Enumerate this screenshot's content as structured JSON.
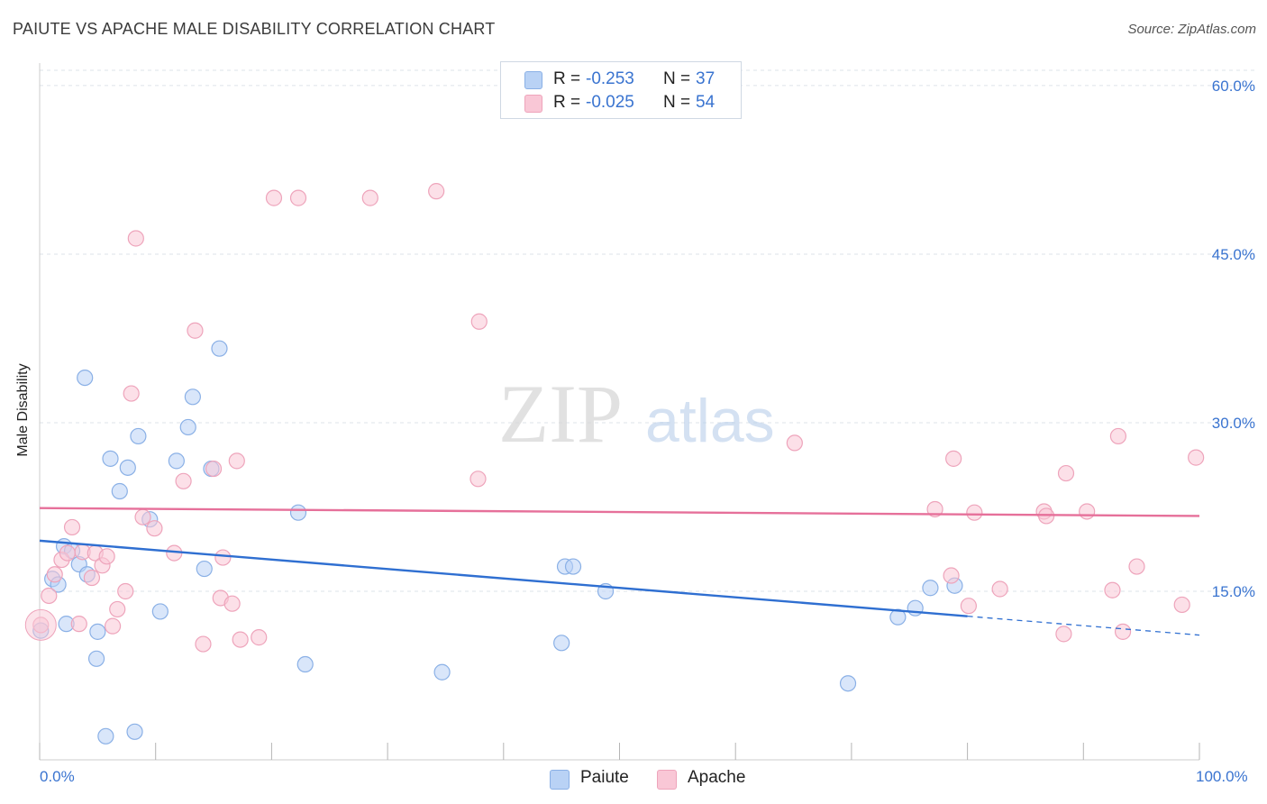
{
  "header": {
    "title": "PAIUTE VS APACHE MALE DISABILITY CORRELATION CHART",
    "source": "Source: ZipAtlas.com"
  },
  "legend_top": {
    "r_label": "R =",
    "n_label": "N =",
    "rows": [
      {
        "r": "-0.253",
        "n": "37"
      },
      {
        "r": "-0.025",
        "n": "54"
      }
    ]
  },
  "watermark": {
    "zip": "ZIP",
    "atlas": "atlas"
  },
  "colors": {
    "paiute_fill": "#b9d2f5",
    "paiute_stroke": "#8ab0e6",
    "paiute_line": "#2f6fd1",
    "apache_fill": "#f9c7d6",
    "apache_stroke": "#eea4bb",
    "apache_line": "#e6709a",
    "tick_text": "#3a74d0",
    "grid": "#dde3ea"
  },
  "chart_data": {
    "type": "scatter",
    "title": "PAIUTE VS APACHE MALE DISABILITY CORRELATION CHART",
    "xlabel": "",
    "ylabel": "Male Disability",
    "xlim": [
      0,
      100
    ],
    "ylim": [
      0,
      62
    ],
    "x_tick_labels": [
      "0.0%",
      "100.0%"
    ],
    "y_ticks": [
      15,
      30,
      45,
      60
    ],
    "y_tick_labels": [
      "15.0%",
      "30.0%",
      "45.0%",
      "60.0%"
    ],
    "grid": true,
    "legend_position": "bottom-center",
    "series": [
      {
        "name": "Paiute",
        "r": -0.253,
        "n": 37,
        "trend": {
          "x0": 0,
          "y0": 19.5,
          "x1": 100,
          "y1": 11.1,
          "solid_until": 80
        },
        "points": [
          [
            0.1,
            11.5
          ],
          [
            1.1,
            16.1
          ],
          [
            1.6,
            15.6
          ],
          [
            2.1,
            19.0
          ],
          [
            2.3,
            12.1
          ],
          [
            2.8,
            18.6
          ],
          [
            3.4,
            17.4
          ],
          [
            3.9,
            34.0
          ],
          [
            4.1,
            16.5
          ],
          [
            4.9,
            9.0
          ],
          [
            5.0,
            11.4
          ],
          [
            5.7,
            2.1
          ],
          [
            6.1,
            26.8
          ],
          [
            6.9,
            23.9
          ],
          [
            7.6,
            26.0
          ],
          [
            8.2,
            2.5
          ],
          [
            8.5,
            28.8
          ],
          [
            9.5,
            21.4
          ],
          [
            10.4,
            13.2
          ],
          [
            11.8,
            26.6
          ],
          [
            12.8,
            29.6
          ],
          [
            13.2,
            32.3
          ],
          [
            14.2,
            17.0
          ],
          [
            14.8,
            25.9
          ],
          [
            15.5,
            36.6
          ],
          [
            22.3,
            22.0
          ],
          [
            22.9,
            8.5
          ],
          [
            34.7,
            7.8
          ],
          [
            45.0,
            10.4
          ],
          [
            45.3,
            17.2
          ],
          [
            46.0,
            17.2
          ],
          [
            48.8,
            15.0
          ],
          [
            69.7,
            6.8
          ],
          [
            74.0,
            12.7
          ],
          [
            75.5,
            13.5
          ],
          [
            76.8,
            15.3
          ],
          [
            78.9,
            15.5
          ]
        ]
      },
      {
        "name": "Apache",
        "r": -0.025,
        "n": 54,
        "trend": {
          "x0": 0,
          "y0": 22.4,
          "x1": 100,
          "y1": 21.7
        },
        "points": [
          [
            0.1,
            12.0
          ],
          [
            0.8,
            14.6
          ],
          [
            1.3,
            16.5
          ],
          [
            1.9,
            17.8
          ],
          [
            2.4,
            18.4
          ],
          [
            2.8,
            20.7
          ],
          [
            3.4,
            12.1
          ],
          [
            3.7,
            18.5
          ],
          [
            4.5,
            16.2
          ],
          [
            4.8,
            18.4
          ],
          [
            5.4,
            17.3
          ],
          [
            5.8,
            18.1
          ],
          [
            6.3,
            11.9
          ],
          [
            6.7,
            13.4
          ],
          [
            7.4,
            15.0
          ],
          [
            7.9,
            32.6
          ],
          [
            8.3,
            46.4
          ],
          [
            8.9,
            21.6
          ],
          [
            9.9,
            20.6
          ],
          [
            11.6,
            18.4
          ],
          [
            12.4,
            24.8
          ],
          [
            13.4,
            38.2
          ],
          [
            14.1,
            10.3
          ],
          [
            15.0,
            25.9
          ],
          [
            15.6,
            14.4
          ],
          [
            15.8,
            18.0
          ],
          [
            16.6,
            13.9
          ],
          [
            17.0,
            26.6
          ],
          [
            17.3,
            10.7
          ],
          [
            18.9,
            10.9
          ],
          [
            20.2,
            50.0
          ],
          [
            22.3,
            50.0
          ],
          [
            28.5,
            50.0
          ],
          [
            34.2,
            50.6
          ],
          [
            37.8,
            25.0
          ],
          [
            37.9,
            39.0
          ],
          [
            65.1,
            28.2
          ],
          [
            77.2,
            22.3
          ],
          [
            78.6,
            16.4
          ],
          [
            78.8,
            26.8
          ],
          [
            80.1,
            13.7
          ],
          [
            80.6,
            22.0
          ],
          [
            82.8,
            15.2
          ],
          [
            86.6,
            22.1
          ],
          [
            86.8,
            21.7
          ],
          [
            88.3,
            11.2
          ],
          [
            88.5,
            25.5
          ],
          [
            90.3,
            22.1
          ],
          [
            92.5,
            15.1
          ],
          [
            93.0,
            28.8
          ],
          [
            93.4,
            11.4
          ],
          [
            94.6,
            17.2
          ],
          [
            98.5,
            13.8
          ],
          [
            99.7,
            26.9
          ]
        ]
      }
    ]
  },
  "legend_bottom": [
    {
      "label": "Paiute"
    },
    {
      "label": "Apache"
    }
  ]
}
